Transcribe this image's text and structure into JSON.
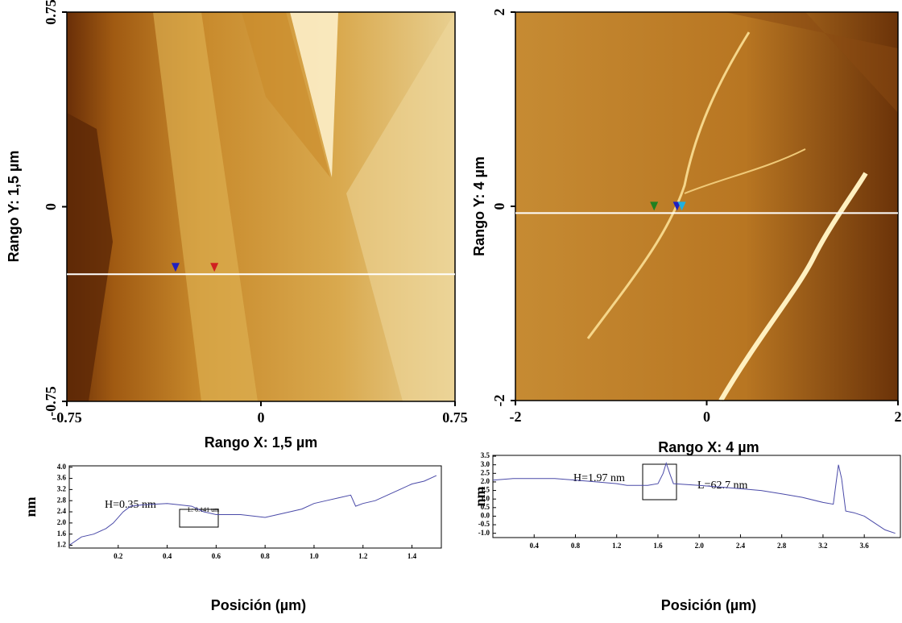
{
  "chart_data": [
    {
      "type": "image",
      "x_label": "Rango X: 1,5 µm",
      "y_label": "Rango Y: 1,5 µm",
      "xlim": [
        -0.75,
        0.75
      ],
      "ylim": [
        -0.75,
        0.75
      ],
      "xticks": [
        -0.75,
        0,
        0.75
      ],
      "yticks": [
        -0.75,
        0,
        0.75
      ],
      "line_y": -0.26,
      "line_color": "#ffffff",
      "markers": [
        {
          "x": -0.33,
          "color": "#2020c0"
        },
        {
          "x": -0.18,
          "color": "#d02020"
        }
      ]
    },
    {
      "type": "image",
      "x_label": "Rango X: 4 µm",
      "y_label": "Rango Y: 4 µm",
      "xlim": [
        -2,
        2
      ],
      "ylim": [
        -2,
        2
      ],
      "xticks": [
        -2,
        0,
        2
      ],
      "yticks": [
        -2,
        0,
        2
      ],
      "line_y": -0.07,
      "line_color": "#ffffff",
      "markers": [
        {
          "x": -0.55,
          "color": "#208020"
        },
        {
          "x": -0.31,
          "color": "#2020c0"
        },
        {
          "x": -0.26,
          "color": "#20b0e0"
        }
      ]
    },
    {
      "type": "line",
      "x_label": "Posición (µm)",
      "y_label": "nm",
      "color": "#4a4aa8",
      "xlim": [
        0,
        1.52
      ],
      "ylim": [
        1.1,
        4.05
      ],
      "xticks": [
        0.2,
        0.4,
        0.6,
        0.8,
        {
          "value": 1,
          "label": "1.0"
        },
        1.2,
        1.4
      ],
      "yticks": [
        1.2,
        1.6,
        {
          "value": 2,
          "label": "2.0"
        },
        2.4,
        2.8,
        3.2,
        3.6,
        {
          "value": 4,
          "label": "4.0"
        }
      ],
      "annotations": [
        "H=0.35 nm",
        "L: 0.141 um"
      ],
      "x": [
        0,
        0.05,
        0.1,
        0.15,
        0.18,
        0.22,
        0.25,
        0.3,
        0.4,
        0.45,
        0.5,
        0.55,
        0.6,
        0.7,
        0.8,
        0.9,
        0.95,
        1.0,
        1.05,
        1.1,
        1.15,
        1.17,
        1.2,
        1.25,
        1.3,
        1.35,
        1.4,
        1.45,
        1.5
      ],
      "values": [
        1.2,
        1.5,
        1.6,
        1.8,
        2.0,
        2.4,
        2.6,
        2.65,
        2.7,
        2.65,
        2.6,
        2.4,
        2.3,
        2.3,
        2.2,
        2.4,
        2.5,
        2.7,
        2.8,
        2.9,
        3.0,
        2.6,
        2.7,
        2.8,
        3.0,
        3.2,
        3.4,
        3.5,
        3.7
      ]
    },
    {
      "type": "line",
      "x_label": "Posición (µm)",
      "y_label": "nm",
      "color": "#4a4aa8",
      "xlim": [
        0,
        3.95
      ],
      "ylim": [
        -1.25,
        3.55
      ],
      "xticks": [
        0.4,
        0.8,
        1.2,
        1.6,
        {
          "value": 2,
          "label": "2.0"
        },
        2.4,
        2.8,
        3.2,
        3.6
      ],
      "yticks": [
        {
          "value": -1,
          "label": "-1.0"
        },
        -0.5,
        {
          "value": 0,
          "label": "0.0"
        },
        0.5,
        {
          "value": 1,
          "label": "1.0"
        },
        1.5,
        {
          "value": 2,
          "label": "2.0"
        },
        2.5,
        {
          "value": 3,
          "label": "3.0"
        },
        3.5
      ],
      "annotations": [
        "H=1.97 nm",
        "L=62.7 nm"
      ],
      "x": [
        0,
        0.2,
        0.4,
        0.6,
        0.8,
        1.0,
        1.2,
        1.3,
        1.5,
        1.6,
        1.65,
        1.68,
        1.72,
        1.75,
        2.0,
        2.2,
        2.4,
        2.6,
        2.8,
        3.0,
        3.2,
        3.3,
        3.35,
        3.38,
        3.42,
        3.5,
        3.6,
        3.7,
        3.8,
        3.9
      ],
      "values": [
        2.1,
        2.2,
        2.2,
        2.2,
        2.1,
        2.0,
        1.9,
        1.8,
        1.8,
        1.9,
        2.5,
        3.1,
        2.4,
        1.9,
        1.8,
        1.7,
        1.6,
        1.5,
        1.3,
        1.1,
        0.8,
        0.7,
        3.0,
        2.2,
        0.3,
        0.2,
        0.0,
        -0.4,
        -0.8,
        -1.0
      ]
    }
  ]
}
